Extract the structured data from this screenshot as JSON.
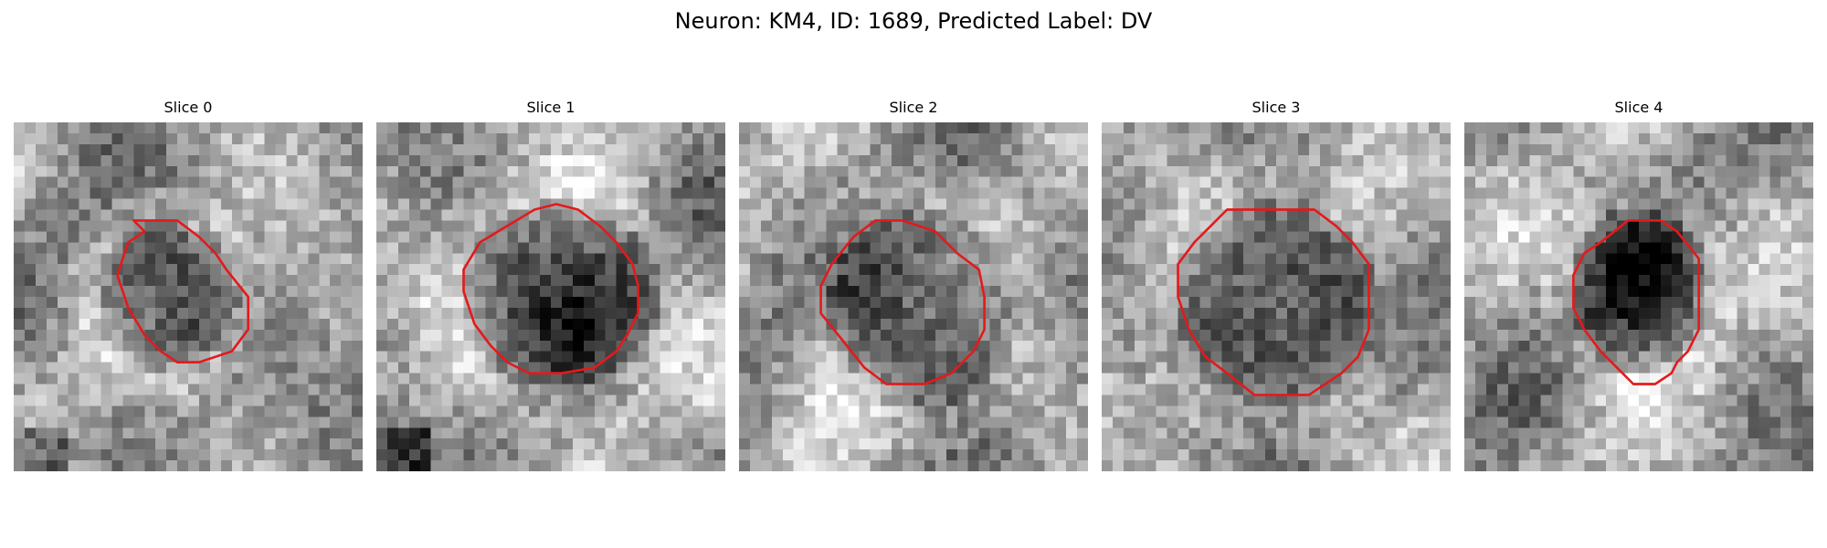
{
  "figure": {
    "title": "Neuron: KM4, ID: 1689, Predicted Label: DV"
  },
  "panels": [
    {
      "title": "Slice 0"
    },
    {
      "title": "Slice 1"
    },
    {
      "title": "Slice 2"
    },
    {
      "title": "Slice 3"
    },
    {
      "title": "Slice 4"
    }
  ],
  "colors": {
    "contour": "#e31a1c",
    "colormap": "gray"
  }
}
